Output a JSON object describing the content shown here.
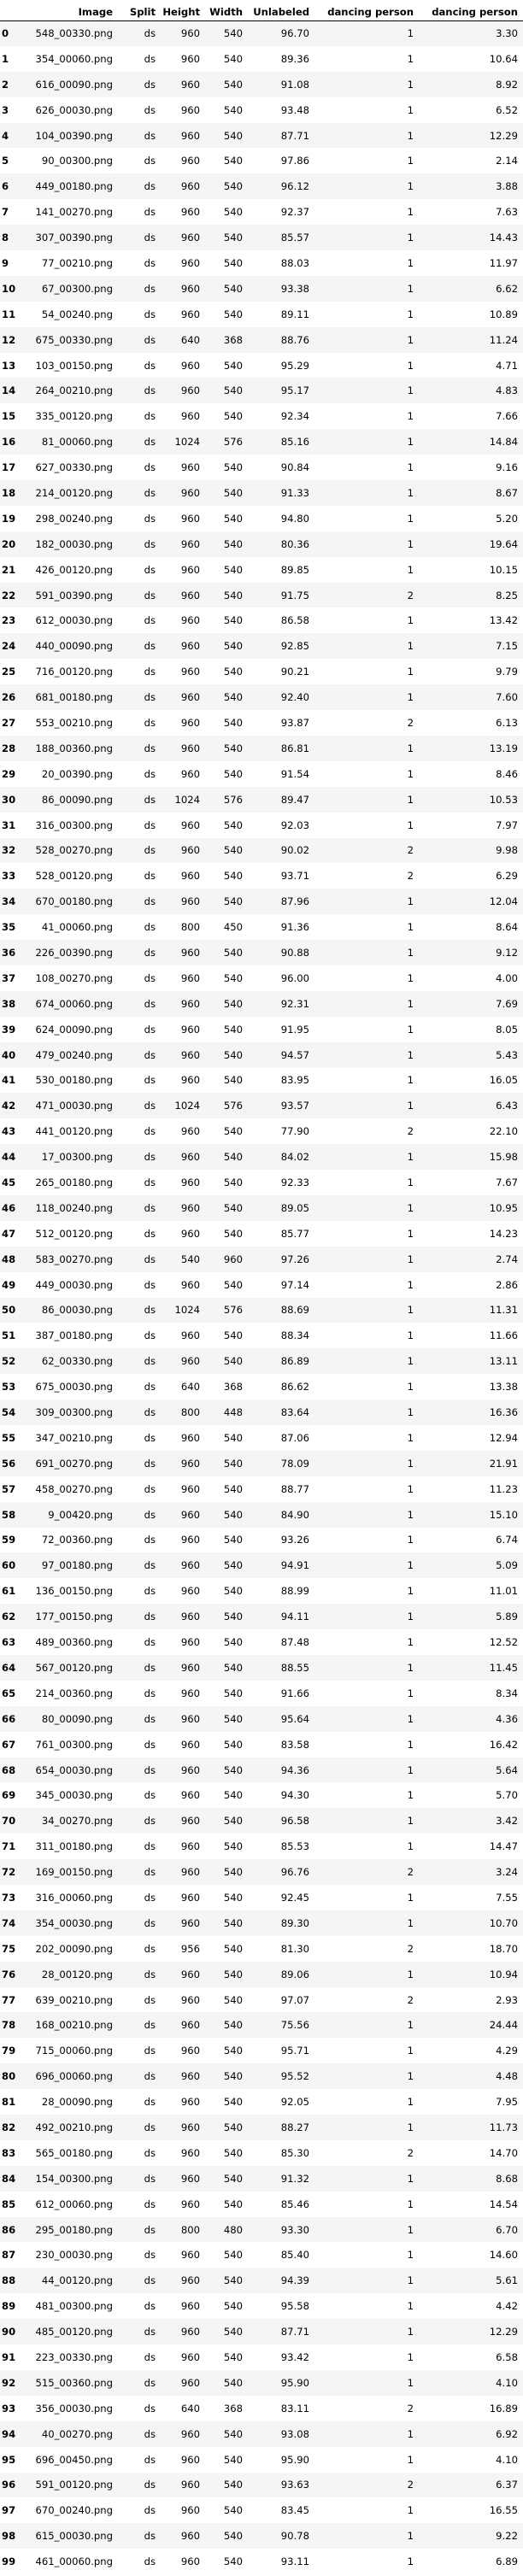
{
  "columns": [
    "",
    "Image",
    "Split",
    "Height",
    "Width",
    "Unlabeled",
    "dancing person",
    "dancing person"
  ],
  "rows": [
    [
      "0",
      "548_00330.png",
      "ds",
      "960",
      "540",
      "96.70",
      "1",
      "3.30"
    ],
    [
      "1",
      "354_00060.png",
      "ds",
      "960",
      "540",
      "89.36",
      "1",
      "10.64"
    ],
    [
      "2",
      "616_00090.png",
      "ds",
      "960",
      "540",
      "91.08",
      "1",
      "8.92"
    ],
    [
      "3",
      "626_00030.png",
      "ds",
      "960",
      "540",
      "93.48",
      "1",
      "6.52"
    ],
    [
      "4",
      "104_00390.png",
      "ds",
      "960",
      "540",
      "87.71",
      "1",
      "12.29"
    ],
    [
      "5",
      "90_00300.png",
      "ds",
      "960",
      "540",
      "97.86",
      "1",
      "2.14"
    ],
    [
      "6",
      "449_00180.png",
      "ds",
      "960",
      "540",
      "96.12",
      "1",
      "3.88"
    ],
    [
      "7",
      "141_00270.png",
      "ds",
      "960",
      "540",
      "92.37",
      "1",
      "7.63"
    ],
    [
      "8",
      "307_00390.png",
      "ds",
      "960",
      "540",
      "85.57",
      "1",
      "14.43"
    ],
    [
      "9",
      "77_00210.png",
      "ds",
      "960",
      "540",
      "88.03",
      "1",
      "11.97"
    ],
    [
      "10",
      "67_00300.png",
      "ds",
      "960",
      "540",
      "93.38",
      "1",
      "6.62"
    ],
    [
      "11",
      "54_00240.png",
      "ds",
      "960",
      "540",
      "89.11",
      "1",
      "10.89"
    ],
    [
      "12",
      "675_00330.png",
      "ds",
      "640",
      "368",
      "88.76",
      "1",
      "11.24"
    ],
    [
      "13",
      "103_00150.png",
      "ds",
      "960",
      "540",
      "95.29",
      "1",
      "4.71"
    ],
    [
      "14",
      "264_00210.png",
      "ds",
      "960",
      "540",
      "95.17",
      "1",
      "4.83"
    ],
    [
      "15",
      "335_00120.png",
      "ds",
      "960",
      "540",
      "92.34",
      "1",
      "7.66"
    ],
    [
      "16",
      "81_00060.png",
      "ds",
      "1024",
      "576",
      "85.16",
      "1",
      "14.84"
    ],
    [
      "17",
      "627_00330.png",
      "ds",
      "960",
      "540",
      "90.84",
      "1",
      "9.16"
    ],
    [
      "18",
      "214_00120.png",
      "ds",
      "960",
      "540",
      "91.33",
      "1",
      "8.67"
    ],
    [
      "19",
      "298_00240.png",
      "ds",
      "960",
      "540",
      "94.80",
      "1",
      "5.20"
    ],
    [
      "20",
      "182_00030.png",
      "ds",
      "960",
      "540",
      "80.36",
      "1",
      "19.64"
    ],
    [
      "21",
      "426_00120.png",
      "ds",
      "960",
      "540",
      "89.85",
      "1",
      "10.15"
    ],
    [
      "22",
      "591_00390.png",
      "ds",
      "960",
      "540",
      "91.75",
      "2",
      "8.25"
    ],
    [
      "23",
      "612_00030.png",
      "ds",
      "960",
      "540",
      "86.58",
      "1",
      "13.42"
    ],
    [
      "24",
      "440_00090.png",
      "ds",
      "960",
      "540",
      "92.85",
      "1",
      "7.15"
    ],
    [
      "25",
      "716_00120.png",
      "ds",
      "960",
      "540",
      "90.21",
      "1",
      "9.79"
    ],
    [
      "26",
      "681_00180.png",
      "ds",
      "960",
      "540",
      "92.40",
      "1",
      "7.60"
    ],
    [
      "27",
      "553_00210.png",
      "ds",
      "960",
      "540",
      "93.87",
      "2",
      "6.13"
    ],
    [
      "28",
      "188_00360.png",
      "ds",
      "960",
      "540",
      "86.81",
      "1",
      "13.19"
    ],
    [
      "29",
      "20_00390.png",
      "ds",
      "960",
      "540",
      "91.54",
      "1",
      "8.46"
    ],
    [
      "30",
      "86_00090.png",
      "ds",
      "1024",
      "576",
      "89.47",
      "1",
      "10.53"
    ],
    [
      "31",
      "316_00300.png",
      "ds",
      "960",
      "540",
      "92.03",
      "1",
      "7.97"
    ],
    [
      "32",
      "528_00270.png",
      "ds",
      "960",
      "540",
      "90.02",
      "2",
      "9.98"
    ],
    [
      "33",
      "528_00120.png",
      "ds",
      "960",
      "540",
      "93.71",
      "2",
      "6.29"
    ],
    [
      "34",
      "670_00180.png",
      "ds",
      "960",
      "540",
      "87.96",
      "1",
      "12.04"
    ],
    [
      "35",
      "41_00060.png",
      "ds",
      "800",
      "450",
      "91.36",
      "1",
      "8.64"
    ],
    [
      "36",
      "226_00390.png",
      "ds",
      "960",
      "540",
      "90.88",
      "1",
      "9.12"
    ],
    [
      "37",
      "108_00270.png",
      "ds",
      "960",
      "540",
      "96.00",
      "1",
      "4.00"
    ],
    [
      "38",
      "674_00060.png",
      "ds",
      "960",
      "540",
      "92.31",
      "1",
      "7.69"
    ],
    [
      "39",
      "624_00090.png",
      "ds",
      "960",
      "540",
      "91.95",
      "1",
      "8.05"
    ],
    [
      "40",
      "479_00240.png",
      "ds",
      "960",
      "540",
      "94.57",
      "1",
      "5.43"
    ],
    [
      "41",
      "530_00180.png",
      "ds",
      "960",
      "540",
      "83.95",
      "1",
      "16.05"
    ],
    [
      "42",
      "471_00030.png",
      "ds",
      "1024",
      "576",
      "93.57",
      "1",
      "6.43"
    ],
    [
      "43",
      "441_00120.png",
      "ds",
      "960",
      "540",
      "77.90",
      "2",
      "22.10"
    ],
    [
      "44",
      "17_00300.png",
      "ds",
      "960",
      "540",
      "84.02",
      "1",
      "15.98"
    ],
    [
      "45",
      "265_00180.png",
      "ds",
      "960",
      "540",
      "92.33",
      "1",
      "7.67"
    ],
    [
      "46",
      "118_00240.png",
      "ds",
      "960",
      "540",
      "89.05",
      "1",
      "10.95"
    ],
    [
      "47",
      "512_00120.png",
      "ds",
      "960",
      "540",
      "85.77",
      "1",
      "14.23"
    ],
    [
      "48",
      "583_00270.png",
      "ds",
      "540",
      "960",
      "97.26",
      "1",
      "2.74"
    ],
    [
      "49",
      "449_00030.png",
      "ds",
      "960",
      "540",
      "97.14",
      "1",
      "2.86"
    ],
    [
      "50",
      "86_00030.png",
      "ds",
      "1024",
      "576",
      "88.69",
      "1",
      "11.31"
    ],
    [
      "51",
      "387_00180.png",
      "ds",
      "960",
      "540",
      "88.34",
      "1",
      "11.66"
    ],
    [
      "52",
      "62_00330.png",
      "ds",
      "960",
      "540",
      "86.89",
      "1",
      "13.11"
    ],
    [
      "53",
      "675_00030.png",
      "ds",
      "640",
      "368",
      "86.62",
      "1",
      "13.38"
    ],
    [
      "54",
      "309_00300.png",
      "ds",
      "800",
      "448",
      "83.64",
      "1",
      "16.36"
    ],
    [
      "55",
      "347_00210.png",
      "ds",
      "960",
      "540",
      "87.06",
      "1",
      "12.94"
    ],
    [
      "56",
      "691_00270.png",
      "ds",
      "960",
      "540",
      "78.09",
      "1",
      "21.91"
    ],
    [
      "57",
      "458_00270.png",
      "ds",
      "960",
      "540",
      "88.77",
      "1",
      "11.23"
    ],
    [
      "58",
      "9_00420.png",
      "ds",
      "960",
      "540",
      "84.90",
      "1",
      "15.10"
    ],
    [
      "59",
      "72_00360.png",
      "ds",
      "960",
      "540",
      "93.26",
      "1",
      "6.74"
    ],
    [
      "60",
      "97_00180.png",
      "ds",
      "960",
      "540",
      "94.91",
      "1",
      "5.09"
    ],
    [
      "61",
      "136_00150.png",
      "ds",
      "960",
      "540",
      "88.99",
      "1",
      "11.01"
    ],
    [
      "62",
      "177_00150.png",
      "ds",
      "960",
      "540",
      "94.11",
      "1",
      "5.89"
    ],
    [
      "63",
      "489_00360.png",
      "ds",
      "960",
      "540",
      "87.48",
      "1",
      "12.52"
    ],
    [
      "64",
      "567_00120.png",
      "ds",
      "960",
      "540",
      "88.55",
      "1",
      "11.45"
    ],
    [
      "65",
      "214_00360.png",
      "ds",
      "960",
      "540",
      "91.66",
      "1",
      "8.34"
    ],
    [
      "66",
      "80_00090.png",
      "ds",
      "960",
      "540",
      "95.64",
      "1",
      "4.36"
    ],
    [
      "67",
      "761_00300.png",
      "ds",
      "960",
      "540",
      "83.58",
      "1",
      "16.42"
    ],
    [
      "68",
      "654_00030.png",
      "ds",
      "960",
      "540",
      "94.36",
      "1",
      "5.64"
    ],
    [
      "69",
      "345_00030.png",
      "ds",
      "960",
      "540",
      "94.30",
      "1",
      "5.70"
    ],
    [
      "70",
      "34_00270.png",
      "ds",
      "960",
      "540",
      "96.58",
      "1",
      "3.42"
    ],
    [
      "71",
      "311_00180.png",
      "ds",
      "960",
      "540",
      "85.53",
      "1",
      "14.47"
    ],
    [
      "72",
      "169_00150.png",
      "ds",
      "960",
      "540",
      "96.76",
      "2",
      "3.24"
    ],
    [
      "73",
      "316_00060.png",
      "ds",
      "960",
      "540",
      "92.45",
      "1",
      "7.55"
    ],
    [
      "74",
      "354_00030.png",
      "ds",
      "960",
      "540",
      "89.30",
      "1",
      "10.70"
    ],
    [
      "75",
      "202_00090.png",
      "ds",
      "956",
      "540",
      "81.30",
      "2",
      "18.70"
    ],
    [
      "76",
      "28_00120.png",
      "ds",
      "960",
      "540",
      "89.06",
      "1",
      "10.94"
    ],
    [
      "77",
      "639_00210.png",
      "ds",
      "960",
      "540",
      "97.07",
      "2",
      "2.93"
    ],
    [
      "78",
      "168_00210.png",
      "ds",
      "960",
      "540",
      "75.56",
      "1",
      "24.44"
    ],
    [
      "79",
      "715_00060.png",
      "ds",
      "960",
      "540",
      "95.71",
      "1",
      "4.29"
    ],
    [
      "80",
      "696_00060.png",
      "ds",
      "960",
      "540",
      "95.52",
      "1",
      "4.48"
    ],
    [
      "81",
      "28_00090.png",
      "ds",
      "960",
      "540",
      "92.05",
      "1",
      "7.95"
    ],
    [
      "82",
      "492_00210.png",
      "ds",
      "960",
      "540",
      "88.27",
      "1",
      "11.73"
    ],
    [
      "83",
      "565_00180.png",
      "ds",
      "960",
      "540",
      "85.30",
      "2",
      "14.70"
    ],
    [
      "84",
      "154_00300.png",
      "ds",
      "960",
      "540",
      "91.32",
      "1",
      "8.68"
    ],
    [
      "85",
      "612_00060.png",
      "ds",
      "960",
      "540",
      "85.46",
      "1",
      "14.54"
    ],
    [
      "86",
      "295_00180.png",
      "ds",
      "800",
      "480",
      "93.30",
      "1",
      "6.70"
    ],
    [
      "87",
      "230_00030.png",
      "ds",
      "960",
      "540",
      "85.40",
      "1",
      "14.60"
    ],
    [
      "88",
      "44_00120.png",
      "ds",
      "960",
      "540",
      "94.39",
      "1",
      "5.61"
    ],
    [
      "89",
      "481_00300.png",
      "ds",
      "960",
      "540",
      "95.58",
      "1",
      "4.42"
    ],
    [
      "90",
      "485_00120.png",
      "ds",
      "960",
      "540",
      "87.71",
      "1",
      "12.29"
    ],
    [
      "91",
      "223_00330.png",
      "ds",
      "960",
      "540",
      "93.42",
      "1",
      "6.58"
    ],
    [
      "92",
      "515_00360.png",
      "ds",
      "960",
      "540",
      "95.90",
      "1",
      "4.10"
    ],
    [
      "93",
      "356_00030.png",
      "ds",
      "640",
      "368",
      "83.11",
      "2",
      "16.89"
    ],
    [
      "94",
      "40_00270.png",
      "ds",
      "960",
      "540",
      "93.08",
      "1",
      "6.92"
    ],
    [
      "95",
      "696_00450.png",
      "ds",
      "960",
      "540",
      "95.90",
      "1",
      "4.10"
    ],
    [
      "96",
      "591_00120.png",
      "ds",
      "960",
      "540",
      "93.63",
      "2",
      "6.37"
    ],
    [
      "97",
      "670_00240.png",
      "ds",
      "960",
      "540",
      "83.45",
      "1",
      "16.55"
    ],
    [
      "98",
      "615_00030.png",
      "ds",
      "960",
      "540",
      "90.78",
      "1",
      "9.22"
    ],
    [
      "99",
      "461_00060.png",
      "ds",
      "960",
      "540",
      "93.11",
      "1",
      "6.89"
    ]
  ]
}
